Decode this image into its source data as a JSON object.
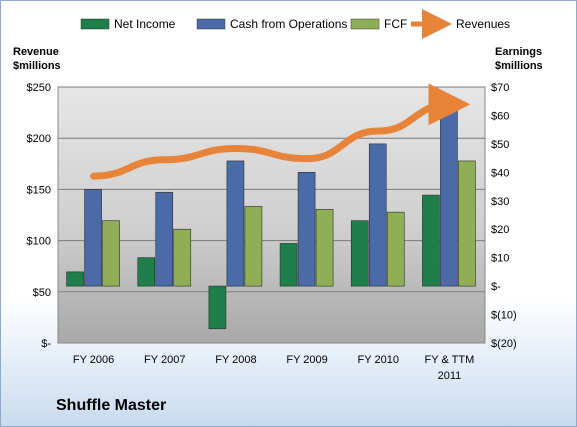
{
  "company": "Shuffle Master",
  "colors": {
    "net_income": "#1f7f4a",
    "cash_from_operations": "#4a6aa8",
    "fcf": "#8fae55",
    "revenues": "#e8843a"
  },
  "chart_data": {
    "type": "bar",
    "categories": [
      "FY 2006",
      "FY 2007",
      "FY 2008",
      "FY 2009",
      "FY 2010",
      "FY & TTM 2011"
    ],
    "left_axis": {
      "label_lines": [
        "Revenue",
        "$millions"
      ],
      "ylim": [
        0,
        250
      ],
      "ticks": [
        0,
        50,
        100,
        150,
        200,
        250
      ],
      "tick_labels": [
        "$-",
        "$50",
        "$100",
        "$150",
        "$200",
        "$250"
      ]
    },
    "right_axis": {
      "label_lines": [
        "Earnings",
        "$millions"
      ],
      "ylim": [
        -20,
        70
      ],
      "ticks": [
        -20,
        -10,
        0,
        10,
        20,
        30,
        40,
        50,
        60,
        70
      ],
      "tick_labels": [
        "$(20)",
        "$(10)",
        "$-",
        "$10",
        "$20",
        "$30",
        "$40",
        "$50",
        "$60",
        "$70"
      ]
    },
    "series": [
      {
        "name": "Net Income",
        "axis": "right",
        "kind": "bar",
        "values": [
          5,
          10,
          -15,
          15,
          23,
          32
        ]
      },
      {
        "name": "Cash from Operations",
        "axis": "right",
        "kind": "bar",
        "values": [
          34,
          33,
          44,
          40,
          50,
          65
        ]
      },
      {
        "name": "FCF",
        "axis": "right",
        "kind": "bar",
        "values": [
          23,
          20,
          28,
          27,
          26,
          44
        ]
      },
      {
        "name": "Revenues",
        "axis": "left",
        "kind": "line",
        "values": [
          163,
          179,
          190,
          180,
          207,
          233
        ]
      }
    ],
    "legend_position": "top",
    "grid": true
  }
}
